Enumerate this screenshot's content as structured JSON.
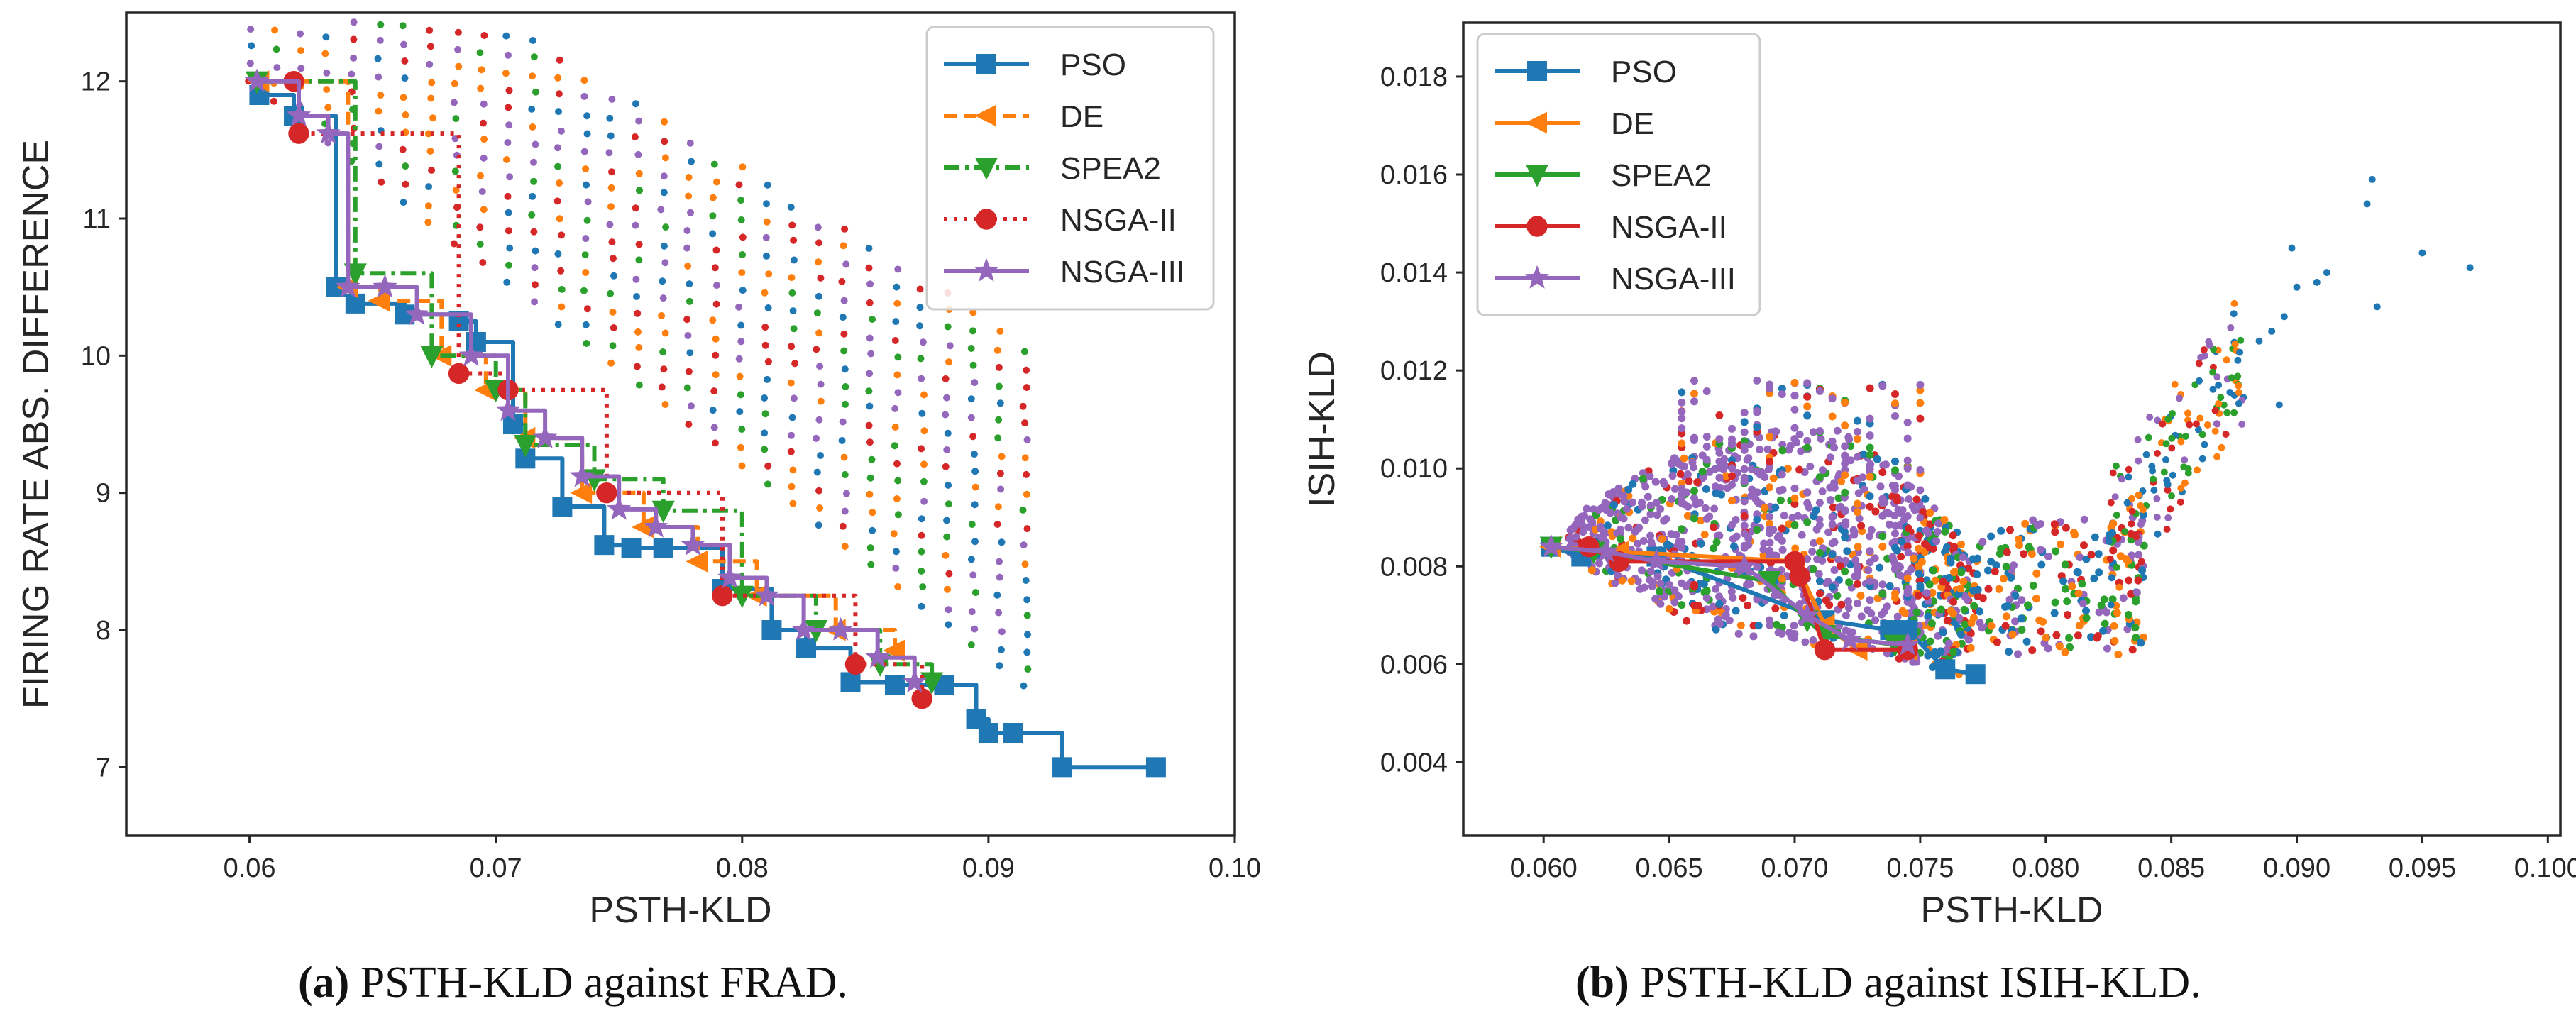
{
  "colors": {
    "PSO": "#1f77b4",
    "DE": "#ff7f0e",
    "SPEA2": "#2ca02c",
    "NSGA-II": "#d62728",
    "NSGA-III": "#9467bd"
  },
  "captions": {
    "a": {
      "letter": "(a)",
      "text": " PSTH-KLD against FRAD."
    },
    "b": {
      "letter": "(b)",
      "text": " PSTH-KLD against ISIH-KLD."
    }
  },
  "chart_data": [
    {
      "id": "a",
      "type": "line+scatter",
      "xlabel": "PSTH-KLD",
      "ylabel": "FIRING RATE ABS. DIFFERENCE",
      "xlim": [
        0.055,
        0.1
      ],
      "ylim": [
        6.5,
        12.5
      ],
      "xticks": [
        0.06,
        0.07,
        0.08,
        0.09,
        0.1
      ],
      "xtick_labels": [
        "0.06",
        "0.07",
        "0.08",
        "0.09",
        "0.10"
      ],
      "yticks": [
        7,
        8,
        9,
        10,
        11,
        12
      ],
      "ytick_labels": [
        "7",
        "8",
        "9",
        "10",
        "11",
        "12"
      ],
      "legend": [
        "PSO",
        "DE",
        "SPEA2",
        "NSGA-II",
        "NSGA-III"
      ],
      "legend_position": "top-right",
      "series": [
        {
          "name": "PSO",
          "marker": "square",
          "dash": "solid",
          "x": [
            0.0604,
            0.0618,
            0.0635,
            0.0643,
            0.0663,
            0.0685,
            0.0692,
            0.0707,
            0.0712,
            0.0727,
            0.0744,
            0.0755,
            0.0768,
            0.0792,
            0.0812,
            0.0826,
            0.0844,
            0.0862,
            0.0882,
            0.0895,
            0.09,
            0.091,
            0.093,
            0.0968
          ],
          "y": [
            11.9,
            11.75,
            10.5,
            10.38,
            10.3,
            10.25,
            10.1,
            9.5,
            9.25,
            8.9,
            8.62,
            8.6,
            8.6,
            8.3,
            8.0,
            7.87,
            7.62,
            7.6,
            7.6,
            7.35,
            7.25,
            7.25,
            7.0,
            7.0
          ]
        },
        {
          "name": "DE",
          "marker": "triangle-left",
          "dash": "dashed",
          "x": [
            0.0604,
            0.064,
            0.0653,
            0.0678,
            0.0696,
            0.0712,
            0.0735,
            0.076,
            0.0782,
            0.0806,
            0.0838,
            0.0862
          ],
          "y": [
            12.0,
            10.5,
            10.4,
            10.0,
            9.75,
            9.4,
            9.0,
            8.75,
            8.5,
            8.25,
            8.0,
            7.85
          ]
        },
        {
          "name": "SPEA2",
          "marker": "triangle-down",
          "dash": "dashdot",
          "x": [
            0.0603,
            0.0643,
            0.0674,
            0.07,
            0.0712,
            0.074,
            0.0768,
            0.08,
            0.083,
            0.0856,
            0.0877
          ],
          "y": [
            12.0,
            10.6,
            10.0,
            9.75,
            9.35,
            9.1,
            8.87,
            8.25,
            8.0,
            7.75,
            7.62
          ]
        },
        {
          "name": "NSGA-II",
          "marker": "circle",
          "dash": "dotted",
          "x": [
            0.0618,
            0.062,
            0.0685,
            0.0705,
            0.0745,
            0.0792,
            0.0846,
            0.0873
          ],
          "y": [
            12.0,
            11.62,
            9.87,
            9.75,
            9.0,
            8.25,
            7.75,
            7.5
          ]
        },
        {
          "name": "NSGA-III",
          "marker": "star",
          "dash": "solid",
          "x": [
            0.0603,
            0.062,
            0.0632,
            0.064,
            0.0655,
            0.0668,
            0.069,
            0.0705,
            0.072,
            0.0735,
            0.075,
            0.0765,
            0.078,
            0.0795,
            0.081,
            0.0825,
            0.084,
            0.0855,
            0.087
          ],
          "y": [
            12.0,
            11.75,
            11.62,
            10.5,
            10.5,
            10.3,
            10.0,
            9.6,
            9.4,
            9.12,
            8.88,
            8.75,
            8.62,
            8.38,
            8.25,
            8.0,
            8.0,
            7.8,
            7.62
          ]
        }
      ]
    },
    {
      "id": "b",
      "type": "line+scatter",
      "xlabel": "PSTH-KLD",
      "ylabel": "ISIH-KLD",
      "xlim": [
        0.0568,
        0.1005
      ],
      "ylim": [
        0.0025,
        0.0191
      ],
      "xticks": [
        0.06,
        0.065,
        0.07,
        0.075,
        0.08,
        0.085,
        0.09,
        0.095,
        0.1
      ],
      "xtick_labels": [
        "0.060",
        "0.065",
        "0.070",
        "0.075",
        "0.080",
        "0.085",
        "0.090",
        "0.095",
        "0.100"
      ],
      "yticks": [
        0.004,
        0.006,
        0.008,
        0.01,
        0.012,
        0.014,
        0.016,
        0.018
      ],
      "ytick_labels": [
        "0.004",
        "0.006",
        "0.008",
        "0.010",
        "0.012",
        "0.014",
        "0.016",
        "0.018"
      ],
      "legend": [
        "PSO",
        "DE",
        "SPEA2",
        "NSGA-II",
        "NSGA-III"
      ],
      "legend_position": "top-left",
      "series": [
        {
          "name": "PSO",
          "marker": "square",
          "dash": "solid",
          "x": [
            0.0603,
            0.0615,
            0.0645,
            0.0712,
            0.0738,
            0.0745,
            0.076,
            0.0772
          ],
          "y": [
            0.0084,
            0.0082,
            0.0082,
            0.0069,
            0.0067,
            0.0067,
            0.0059,
            0.0058
          ]
        },
        {
          "name": "DE",
          "marker": "triangle-left",
          "dash": "solid",
          "x": [
            0.0603,
            0.063,
            0.07,
            0.0712,
            0.0725,
            0.0745
          ],
          "y": [
            0.0084,
            0.0083,
            0.0081,
            0.0068,
            0.0063,
            0.0063
          ]
        },
        {
          "name": "SPEA2",
          "marker": "triangle-down",
          "dash": "solid",
          "x": [
            0.0603,
            0.062,
            0.069,
            0.0705,
            0.0712,
            0.074
          ],
          "y": [
            0.0084,
            0.0083,
            0.0077,
            0.0069,
            0.0066,
            0.0064
          ]
        },
        {
          "name": "NSGA-II",
          "marker": "circle",
          "dash": "solid",
          "x": [
            0.0618,
            0.063,
            0.07,
            0.0702,
            0.0712,
            0.0745
          ],
          "y": [
            0.0084,
            0.0081,
            0.0081,
            0.0078,
            0.0063,
            0.0063
          ]
        },
        {
          "name": "NSGA-III",
          "marker": "star",
          "dash": "solid",
          "x": [
            0.0603,
            0.0625,
            0.0645,
            0.068,
            0.0705,
            0.0722,
            0.0745
          ],
          "y": [
            0.0084,
            0.0083,
            0.0081,
            0.008,
            0.007,
            0.0065,
            0.0064
          ]
        }
      ]
    }
  ]
}
